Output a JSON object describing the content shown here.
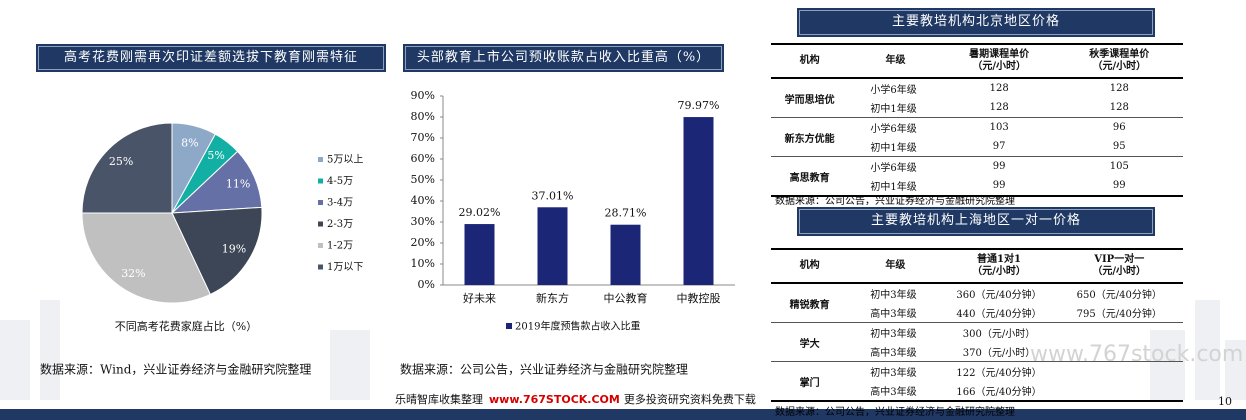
{
  "chart_data": [
    {
      "type": "pie",
      "title": "高考花费刚需再次印证差额选拔下教育刚需特征",
      "categories": [
        "5万以上",
        "4-5万",
        "3-4万",
        "2-3万",
        "1-2万",
        "1万以下"
      ],
      "values": [
        8,
        5,
        11,
        19,
        32,
        25
      ],
      "value_labels": [
        "8%",
        "5%",
        "11%",
        "19%",
        "32%",
        "25%"
      ],
      "colors": [
        "#8ea9c8",
        "#12b0a4",
        "#6470a6",
        "#3d4656",
        "#c0c0c0",
        "#4a5468"
      ],
      "xlabel": "不同高考花费家庭占比（%）",
      "legend": "right",
      "source": "数据来源：Wind，兴业证券经济与金融研究院整理"
    },
    {
      "type": "bar",
      "title": "头部教育上市公司预收账款占收入比重高（%）",
      "categories": [
        "好未来",
        "新东方",
        "中公教育",
        "中教控股"
      ],
      "series": [
        {
          "name": "2019年度预售款占收入比重",
          "color": "#1c2677",
          "values": [
            29.02,
            37.01,
            28.71,
            79.97
          ],
          "value_labels": [
            "29.02%",
            "37.01%",
            "28.71%",
            "79.97%"
          ]
        }
      ],
      "ylim": [
        0,
        90
      ],
      "yticks": [
        {
          "value": 0,
          "label": "0%"
        },
        {
          "value": 10,
          "label": "10%"
        },
        {
          "value": 20,
          "label": "20%"
        },
        {
          "value": 30,
          "label": "30%"
        },
        {
          "value": 40,
          "label": "40%"
        },
        {
          "value": 50,
          "label": "50%"
        },
        {
          "value": 60,
          "label": "60%"
        },
        {
          "value": 70,
          "label": "70%"
        },
        {
          "value": 80,
          "label": "80%"
        },
        {
          "value": 90,
          "label": "90%"
        }
      ],
      "grid": false,
      "legend": "bottom",
      "source": "数据来源：公司公告，兴业证券经济与金融研究院整理"
    }
  ],
  "tables": [
    {
      "title": "主要教培机构北京地区价格",
      "columns": [
        "机构",
        "年级",
        "暑期课程单价\n（元/小时）",
        "秋季课程单价\n（元/小时）"
      ],
      "groups": [
        {
          "name": "学而思培优",
          "rows": [
            [
              "小学6年级",
              128,
              128
            ],
            [
              "初中1年级",
              128,
              128
            ]
          ]
        },
        {
          "name": "新东方优能",
          "rows": [
            [
              "小学6年级",
              103,
              96
            ],
            [
              "初中1年级",
              97,
              95
            ]
          ]
        },
        {
          "name": "高思教育",
          "rows": [
            [
              "小学6年级",
              99,
              105
            ],
            [
              "初中1年级",
              99,
              99
            ]
          ]
        }
      ],
      "source": "数据来源：公司公告，兴业证券经济与金融研究院整理"
    },
    {
      "title": "主要教培机构上海地区一对一价格",
      "columns": [
        "机构",
        "年级",
        "普通1对1\n（元/小时）",
        "VIP一对一\n（元/小时）"
      ],
      "groups": [
        {
          "name": "精锐教育",
          "rows": [
            [
              "初中3年级",
              "360（元/40分钟）",
              "650（元/40分钟）"
            ],
            [
              "高中3年级",
              "440（元/40分钟）",
              "795（元/40分钟）"
            ]
          ]
        },
        {
          "name": "学大",
          "rows": [
            [
              "初中3年级",
              "300（元/小时）",
              null
            ],
            [
              "高中3年级",
              "370（元/小时）",
              null
            ]
          ]
        },
        {
          "name": "掌门",
          "rows": [
            [
              "初中3年级",
              "122（元/40分钟）",
              null
            ],
            [
              "高中3年级",
              "166（元/40分钟）",
              null
            ]
          ]
        }
      ],
      "source": "数据来源：公司公告，兴业证券经济与金融研究院整理"
    }
  ],
  "watermark": "www.767stock.com",
  "footer": {
    "prefix": "乐晴智库收集整理",
    "site": "www.767STOCK.COM",
    "suffix": "更多投资研究资料免费下载"
  },
  "page_number": 10
}
